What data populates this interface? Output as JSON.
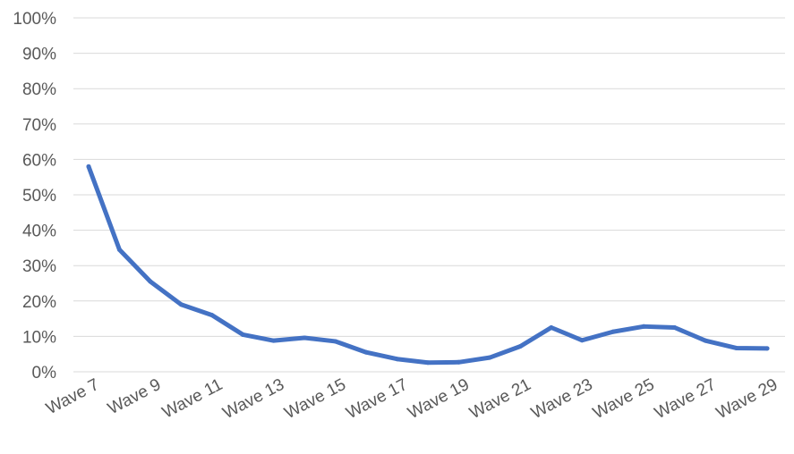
{
  "chart_data": {
    "type": "line",
    "title": "",
    "xlabel": "",
    "ylabel": "",
    "ylim": [
      0,
      100
    ],
    "y_ticks": [
      "0%",
      "10%",
      "20%",
      "30%",
      "40%",
      "50%",
      "60%",
      "70%",
      "80%",
      "90%",
      "100%"
    ],
    "grid": true,
    "legend": "none",
    "categories": [
      "Wave 7",
      "Wave 8",
      "Wave 9",
      "Wave 10",
      "Wave 11",
      "Wave 12",
      "Wave 13",
      "Wave 14",
      "Wave 15",
      "Wave 16",
      "Wave 17",
      "Wave 18",
      "Wave 19",
      "Wave 20",
      "Wave 21",
      "Wave 22",
      "Wave 23",
      "Wave 24",
      "Wave 25",
      "Wave 26",
      "Wave 27",
      "Wave 28",
      "Wave 29"
    ],
    "x_tick_labels": [
      "Wave 7",
      "",
      "Wave 9",
      "",
      "Wave 11",
      "",
      "Wave 13",
      "",
      "Wave 15",
      "",
      "Wave 17",
      "",
      "Wave 19",
      "",
      "Wave 21",
      "",
      "Wave 23",
      "",
      "Wave 25",
      "",
      "Wave 27",
      "",
      "Wave 29"
    ],
    "series": [
      {
        "color": "#4472c4",
        "values": [
          58,
          34.5,
          25.5,
          19,
          16,
          10.5,
          8.8,
          9.6,
          8.6,
          5.5,
          3.6,
          2.6,
          2.7,
          4,
          7.2,
          12.5,
          8.9,
          11.3,
          12.8,
          12.5,
          8.8,
          6.7,
          6.6
        ]
      }
    ]
  }
}
